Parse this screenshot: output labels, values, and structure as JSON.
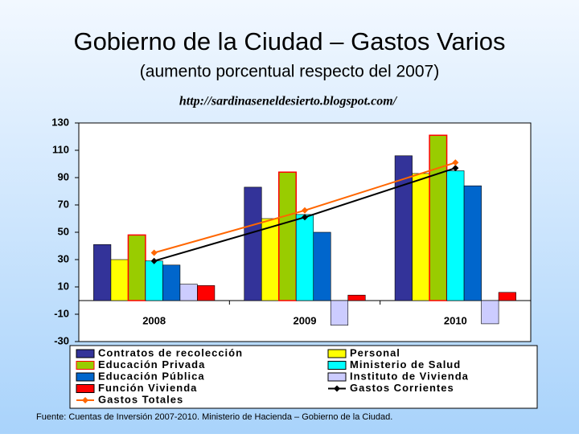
{
  "chart_data": {
    "type": "bar",
    "title": "Gobierno de la Ciudad – Gastos Varios",
    "subtitle": "(aumento porcentual respecto del 2007)",
    "url": "http://sardinaseneldesierto.blogspot.com/",
    "source": "Fuente: Cuentas de Inversión 2007-2010. Ministerio de Hacienda – Gobierno de la Ciudad.",
    "categories": [
      "2008",
      "2009",
      "2010"
    ],
    "ylim": [
      -30,
      130
    ],
    "yticks": [
      -30,
      -10,
      10,
      30,
      50,
      70,
      90,
      110,
      130
    ],
    "series": [
      {
        "name": "Contratos de recolección",
        "type": "bar",
        "color": "#333399",
        "edgecolor": "#000000",
        "values": [
          41,
          83,
          106
        ]
      },
      {
        "name": "Personal",
        "type": "bar",
        "color": "#ffff00",
        "edgecolor": "#000000",
        "values": [
          30,
          60,
          93
        ]
      },
      {
        "name": "Educación Privada",
        "type": "bar",
        "color": "#99cc00",
        "edgecolor": "#ff0000",
        "values": [
          48,
          94,
          121
        ]
      },
      {
        "name": "Ministerio de Salud",
        "type": "bar",
        "color": "#00ffff",
        "edgecolor": "#000000",
        "values": [
          29,
          63,
          95
        ]
      },
      {
        "name": "Educación Pública",
        "type": "bar",
        "color": "#0066cc",
        "edgecolor": "#000000",
        "values": [
          26,
          50,
          84
        ]
      },
      {
        "name": "Instituto de Vivienda",
        "type": "bar",
        "color": "#ccccff",
        "edgecolor": "#000000",
        "values": [
          12,
          -18,
          -17
        ]
      },
      {
        "name": "Función Vivienda",
        "type": "bar",
        "color": "#ff0000",
        "edgecolor": "#000000",
        "values": [
          11,
          4,
          6
        ]
      },
      {
        "name": "Gastos Corrientes",
        "type": "line",
        "color": "#000000",
        "values": [
          29,
          61,
          97
        ]
      },
      {
        "name": "Gastos Totales",
        "type": "line",
        "color": "#ff6600",
        "values": [
          35,
          66,
          101
        ]
      }
    ]
  }
}
